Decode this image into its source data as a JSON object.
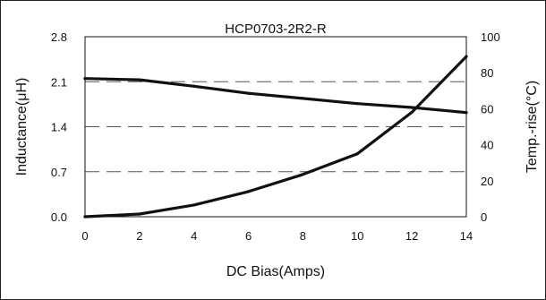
{
  "chart_data": {
    "type": "line",
    "title": "HCP0703-2R2-R",
    "xlabel": "DC Bias(Amps)",
    "ylabel_left": "Inductance(μH)",
    "ylabel_right": "Temp.-rise(°C)",
    "xlim": [
      0,
      14
    ],
    "ylim_left": [
      0,
      2.8
    ],
    "ylim_right": [
      0,
      100
    ],
    "x_ticks": [
      "0",
      "2",
      "4",
      "6",
      "8",
      "10",
      "12",
      "14"
    ],
    "y_left_ticks": [
      "0.0",
      "0.7",
      "1.4",
      "2.1",
      "2.8"
    ],
    "y_right_ticks": [
      "0",
      "20",
      "40",
      "60",
      "80",
      "100"
    ],
    "grid": "horizontal-dashed",
    "colors": {
      "line": "#111111",
      "grid": "#555555"
    },
    "series": [
      {
        "axis": "left",
        "x": [
          0,
          2,
          4,
          6,
          8,
          10,
          12,
          14
        ],
        "y": [
          2.15,
          2.13,
          2.03,
          1.92,
          1.84,
          1.76,
          1.7,
          1.62
        ]
      },
      {
        "axis": "right",
        "x": [
          0,
          2,
          4,
          6,
          8,
          10,
          12,
          14
        ],
        "y": [
          0,
          1.5,
          6.5,
          14,
          23.5,
          35,
          58,
          89
        ]
      }
    ]
  }
}
